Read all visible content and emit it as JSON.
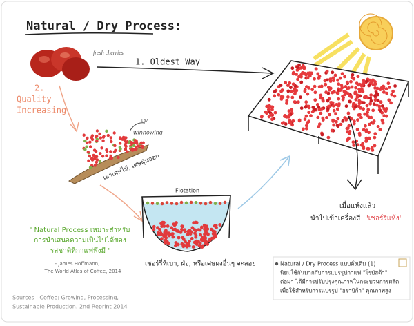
{
  "title": "Natural / Dry Process:",
  "labels": {
    "fresh_cherries": "fresh cherries",
    "oldest_way": "1. Oldest Way",
    "quality": [
      "2.",
      "Quality",
      "Increasing"
    ],
    "winnowing": [
      "เอง",
      "winnowing"
    ],
    "remove_debris": "เอาเศษไม้, เศษฝุ่นออก",
    "flotation": "Flotation",
    "flotation_caption": "เชอร์รี่ที่เบา, ฝ่อ, หรือเศษผงอื่นๆ จะลอย",
    "dried": [
      "เมื่อแห้งแล้ว",
      "นำไปเข้าเครื่องสี"
    ],
    "dried_cherry": "'เชอร์รี่แห้ง'"
  },
  "quote": {
    "lines": [
      "' Natural Process เหมาะสำหรับ",
      "การนำเสนอความเป็นไปได้ของ",
      "รสชาติที่กาแฟพึงมี '"
    ],
    "attribution": [
      "- James Hoffmann,",
      "The World Atlas of Coffee, 2014"
    ]
  },
  "note": {
    "lines": [
      "Natural / Dry Process แบบดั้งเดิม (1)",
      "นิยมใช้กันมากกับการแปรรูปกาแฟ \"โรบัสต้า\"",
      "ต่อมา ได้มีการปรับปรุงคุณภาพในกระบวนการผลิต",
      "เพื่อใช้สำหรับการแปรรูป \"อราบิก้า\" คุณภาพสูง"
    ]
  },
  "sources": [
    "Sources : Coffee: Growing, Processing,",
    "Sustainable Production. 2nd Reprint 2014"
  ]
}
